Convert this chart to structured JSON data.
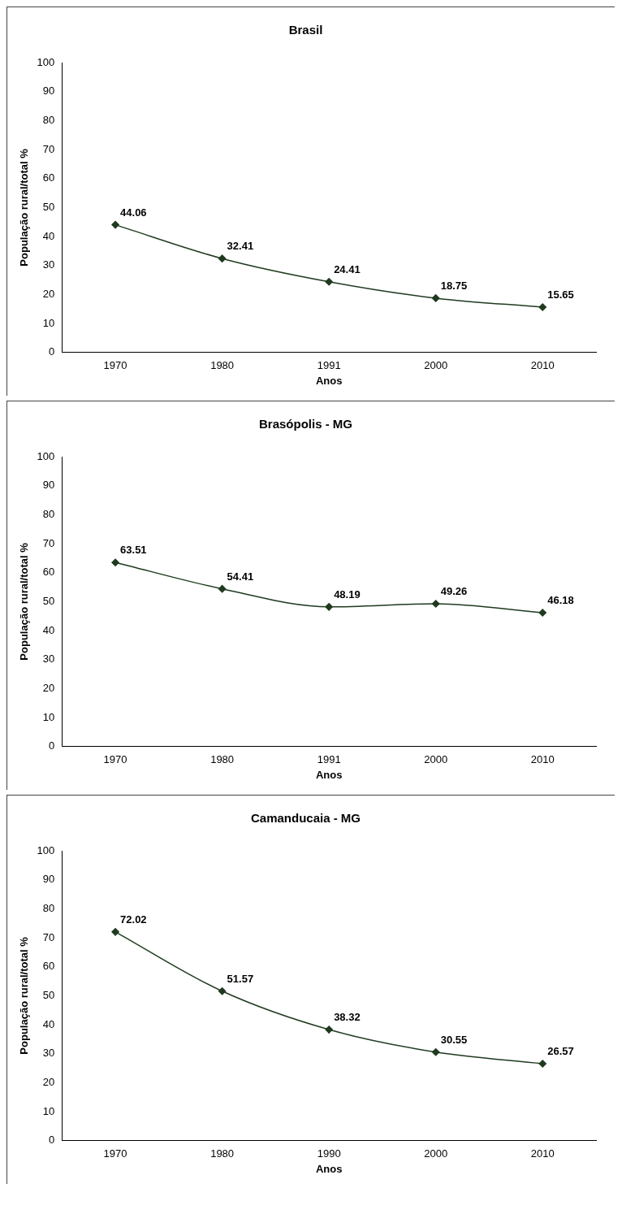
{
  "chart_data": [
    {
      "type": "line",
      "title": "Brasil",
      "xlabel": "Anos",
      "ylabel": "População rural/total %",
      "categories": [
        "1970",
        "1980",
        "1991",
        "2000",
        "2010"
      ],
      "series": [
        {
          "color": "#1f3a1f",
          "values": [
            44.06,
            32.41,
            24.41,
            18.75,
            15.65
          ]
        }
      ],
      "ylim": [
        0,
        100
      ],
      "yticks": [
        0,
        10,
        20,
        30,
        40,
        50,
        60,
        70,
        80,
        90,
        100
      ],
      "data_labels": true,
      "marker": "diamond",
      "grid": false,
      "legend": false
    },
    {
      "type": "line",
      "title": "Brasópolis - MG",
      "xlabel": "Anos",
      "ylabel": "População rural/total %",
      "categories": [
        "1970",
        "1980",
        "1991",
        "2000",
        "2010"
      ],
      "series": [
        {
          "color": "#1f3a1f",
          "values": [
            63.51,
            54.41,
            48.19,
            49.26,
            46.18
          ]
        }
      ],
      "ylim": [
        0,
        100
      ],
      "yticks": [
        0,
        10,
        20,
        30,
        40,
        50,
        60,
        70,
        80,
        90,
        100
      ],
      "data_labels": true,
      "marker": "diamond",
      "grid": false,
      "legend": false
    },
    {
      "type": "line",
      "title": "Camanducaia - MG",
      "xlabel": "Anos",
      "ylabel": "População rural/total %",
      "categories": [
        "1970",
        "1980",
        "1990",
        "2000",
        "2010"
      ],
      "series": [
        {
          "color": "#1f3a1f",
          "values": [
            72.02,
            51.57,
            38.32,
            30.55,
            26.57
          ]
        }
      ],
      "ylim": [
        0,
        100
      ],
      "yticks": [
        0,
        10,
        20,
        30,
        40,
        50,
        60,
        70,
        80,
        90,
        100
      ],
      "data_labels": true,
      "marker": "diamond",
      "grid": false,
      "legend": false
    }
  ]
}
